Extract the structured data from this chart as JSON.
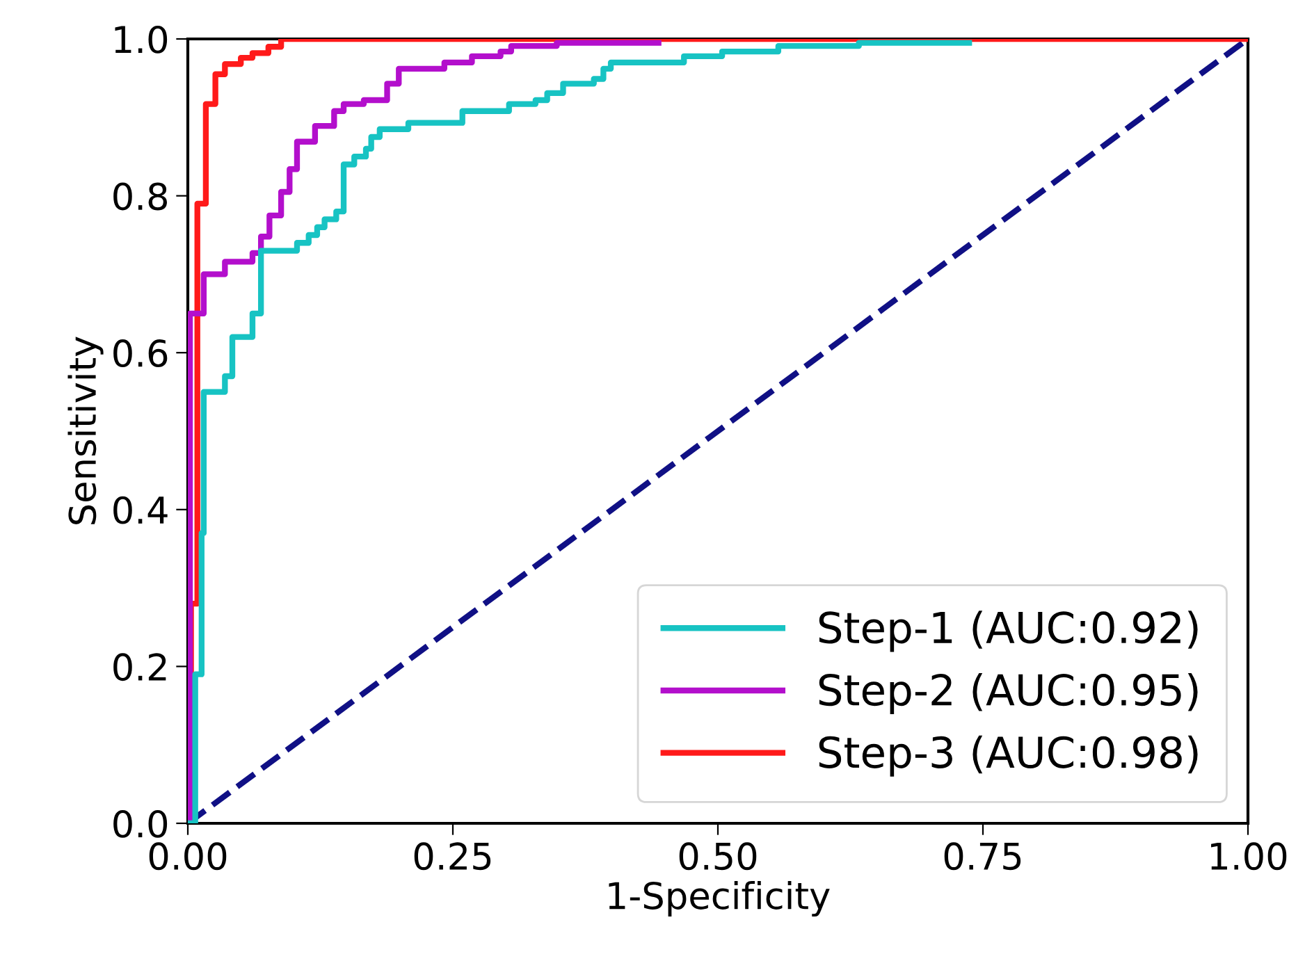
{
  "chart_data": {
    "type": "line",
    "xlabel": "1-Specificity",
    "ylabel": "Sensitivity",
    "xlim": [
      0,
      1
    ],
    "ylim": [
      0,
      1
    ],
    "xticks": [
      {
        "value": 0,
        "label": "0.00"
      },
      0.25,
      {
        "value": 0.5,
        "label": "0.50"
      },
      0.75,
      {
        "value": 1,
        "label": "1.00"
      }
    ],
    "yticks": [
      {
        "value": 0,
        "label": "0.0"
      },
      0.2,
      0.4,
      0.6,
      0.8,
      {
        "value": 1,
        "label": "1.0"
      }
    ],
    "grid": false,
    "legend": "bottom right",
    "marker": "none",
    "series": [
      {
        "name": "Step-1 (AUC:0.92)",
        "color": "#17c3c3",
        "line_style": "solid",
        "x": [
          0,
          0.007,
          0.007,
          0.013,
          0.013,
          0.015,
          0.015,
          0.035,
          0.035,
          0.042,
          0.042,
          0.061,
          0.061,
          0.069,
          0.069,
          0.103,
          0.103,
          0.114,
          0.114,
          0.122,
          0.122,
          0.129,
          0.129,
          0.14,
          0.14,
          0.147,
          0.147,
          0.157,
          0.157,
          0.168,
          0.168,
          0.173,
          0.173,
          0.181,
          0.181,
          0.208,
          0.208,
          0.259,
          0.259,
          0.303,
          0.303,
          0.328,
          0.328,
          0.339,
          0.339,
          0.354,
          0.354,
          0.383,
          0.383,
          0.392,
          0.392,
          0.399,
          0.399,
          0.468,
          0.468,
          0.504,
          0.504,
          0.557,
          0.557,
          0.633,
          0.633,
          0.737
        ],
        "values": [
          0,
          0,
          0.19,
          0.19,
          0.37,
          0.37,
          0.55,
          0.55,
          0.57,
          0.57,
          0.62,
          0.62,
          0.65,
          0.65,
          0.73,
          0.73,
          0.74,
          0.74,
          0.75,
          0.75,
          0.76,
          0.76,
          0.77,
          0.77,
          0.78,
          0.78,
          0.84,
          0.84,
          0.85,
          0.85,
          0.86,
          0.86,
          0.875,
          0.875,
          0.885,
          0.885,
          0.893,
          0.893,
          0.908,
          0.908,
          0.917,
          0.917,
          0.922,
          0.922,
          0.931,
          0.931,
          0.943,
          0.943,
          0.949,
          0.949,
          0.962,
          0.962,
          0.97,
          0.97,
          0.978,
          0.978,
          0.984,
          0.984,
          0.991,
          0.991,
          0.995,
          0.995
        ]
      },
      {
        "name": "Step-2 (AUC:0.95)",
        "color": "#b30fcc",
        "line_style": "solid",
        "x": [
          0,
          0.002,
          0.002,
          0.015,
          0.015,
          0.035,
          0.035,
          0.061,
          0.061,
          0.069,
          0.069,
          0.077,
          0.077,
          0.088,
          0.088,
          0.096,
          0.096,
          0.103,
          0.103,
          0.12,
          0.12,
          0.138,
          0.138,
          0.147,
          0.147,
          0.166,
          0.166,
          0.188,
          0.188,
          0.199,
          0.199,
          0.242,
          0.242,
          0.268,
          0.268,
          0.295,
          0.295,
          0.305,
          0.305,
          0.348,
          0.348,
          0.444
        ],
        "values": [
          0,
          0,
          0.65,
          0.65,
          0.7,
          0.7,
          0.716,
          0.716,
          0.727,
          0.727,
          0.748,
          0.748,
          0.775,
          0.775,
          0.805,
          0.805,
          0.834,
          0.834,
          0.869,
          0.869,
          0.889,
          0.889,
          0.908,
          0.908,
          0.917,
          0.917,
          0.922,
          0.922,
          0.943,
          0.943,
          0.962,
          0.962,
          0.97,
          0.97,
          0.978,
          0.978,
          0.984,
          0.984,
          0.991,
          0.991,
          0.995,
          0.995
        ]
      },
      {
        "name": "Step-3 (AUC:0.98)",
        "color": "#ff1a1a",
        "line_style": "solid",
        "x": [
          0,
          0.003,
          0.003,
          0.009,
          0.009,
          0.017,
          0.017,
          0.026,
          0.026,
          0.035,
          0.035,
          0.05,
          0.05,
          0.061,
          0.061,
          0.076,
          0.076,
          0.088,
          0.088,
          1
        ],
        "values": [
          0,
          0,
          0.28,
          0.28,
          0.79,
          0.79,
          0.917,
          0.917,
          0.955,
          0.955,
          0.968,
          0.968,
          0.976,
          0.976,
          0.982,
          0.982,
          0.99,
          0.99,
          1,
          1
        ]
      },
      {
        "color": "#101085",
        "line_style": "dashed",
        "x": [
          0,
          1
        ],
        "values": [
          0,
          1
        ]
      }
    ]
  }
}
